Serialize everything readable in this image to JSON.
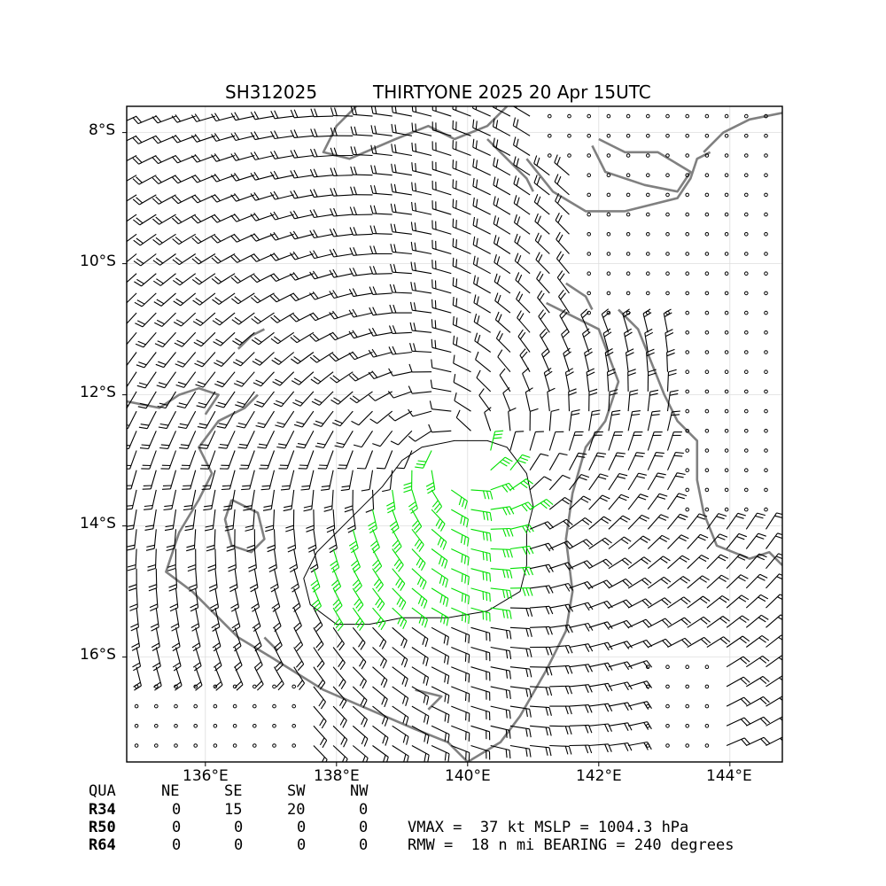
{
  "title": {
    "storm_id": "SH312025",
    "storm_name_time": "THIRTYONE 2025 20 Apr 15UTC"
  },
  "axes": {
    "lon_labels": [
      "136°E",
      "138°E",
      "140°E",
      "142°E",
      "144°E"
    ],
    "lat_labels": [
      "8°S",
      "10°S",
      "12°S",
      "14°S",
      "16°S"
    ]
  },
  "map_data": {
    "lon_range": [
      134.8,
      144.8
    ],
    "lat_range": [
      -17.6,
      -7.6
    ],
    "center": {
      "lon": 139.9,
      "lat": -12.9
    },
    "gale_color": "#00e000",
    "calm_color": "#000000",
    "coast_color": "#808080",
    "grid": true
  },
  "radii": {
    "header": [
      "QUA",
      "NE",
      "SE",
      "SW",
      "NW"
    ],
    "rows": [
      {
        "label": "R34",
        "values": [
          "0",
          "15",
          "20",
          "0"
        ]
      },
      {
        "label": "R50",
        "values": [
          "0",
          "0",
          "0",
          "0"
        ]
      },
      {
        "label": "R64",
        "values": [
          "0",
          "0",
          "0",
          "0"
        ]
      }
    ]
  },
  "stats": {
    "line1": "VMAX =  37 kt MSLP = 1004.3 hPa",
    "line2": "RMW =  18 n mi BEARING = 240 degrees"
  }
}
